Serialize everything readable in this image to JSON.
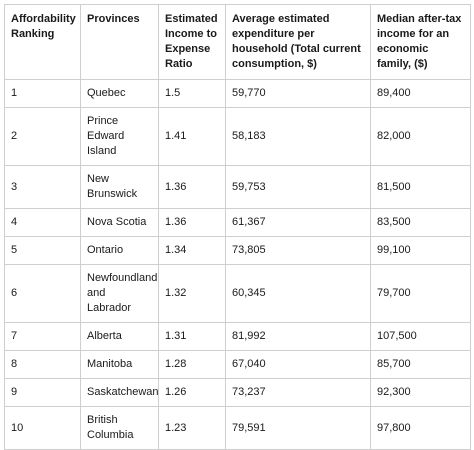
{
  "table": {
    "header": [
      "Affordability Ranking",
      "Provinces",
      "Estimated Income to Expense Ratio",
      "Average estimated expenditure per household (Total current consumption, $)",
      "Median after-tax income for an economic family, ($)"
    ],
    "rows": [
      [
        "1",
        "Quebec",
        "1.5",
        "59,770",
        "89,400"
      ],
      [
        "2",
        "Prince Edward Island",
        "1.41",
        "58,183",
        "82,000"
      ],
      [
        "3",
        "New Brunswick",
        "1.36",
        "59,753",
        "81,500"
      ],
      [
        "4",
        "Nova Scotia",
        "1.36",
        "61,367",
        "83,500"
      ],
      [
        "5",
        "Ontario",
        "1.34",
        "73,805",
        "99,100"
      ],
      [
        "6",
        "Newfoundland and Labrador",
        "1.32",
        "60,345",
        "79,700"
      ],
      [
        "7",
        "Alberta",
        "1.31",
        "81,992",
        "107,500"
      ],
      [
        "8",
        "Manitoba",
        "1.28",
        "67,040",
        "85,700"
      ],
      [
        "9",
        "Saskatchewan",
        "1.26",
        "73,237",
        "92,300"
      ],
      [
        "10",
        "British Columbia",
        "1.23",
        "79,591",
        "97,800"
      ]
    ]
  }
}
